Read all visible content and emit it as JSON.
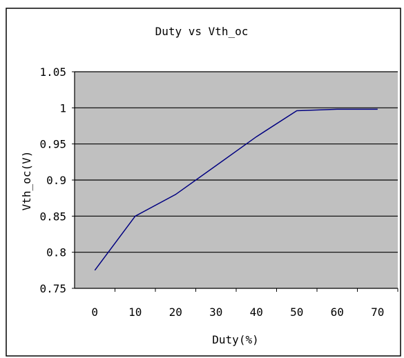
{
  "chart_data": {
    "type": "line",
    "title": "Duty vs Vth_oc",
    "xlabel": "Duty(%)",
    "ylabel": "Vth_oc(V)",
    "x_ticks": [
      "0",
      "10",
      "20",
      "30",
      "40",
      "50",
      "60",
      "70"
    ],
    "y_ticks": [
      "1.05",
      "1",
      "0.95",
      "0.9",
      "0.85",
      "0.8",
      "0.75"
    ],
    "xlim": [
      -5,
      75
    ],
    "ylim": [
      0.75,
      1.05
    ],
    "grid": true,
    "legend": "none",
    "series": [
      {
        "x": [
          0,
          10,
          20,
          30,
          40,
          50,
          60,
          70
        ],
        "y": [
          0.775,
          0.85,
          0.88,
          0.92,
          0.96,
          0.996,
          0.998,
          0.998
        ]
      }
    ]
  },
  "colors": {
    "plot_background": "#c0c0c0",
    "gridline": "#000000",
    "series_line": "#000080",
    "frame_border": "#000000"
  }
}
